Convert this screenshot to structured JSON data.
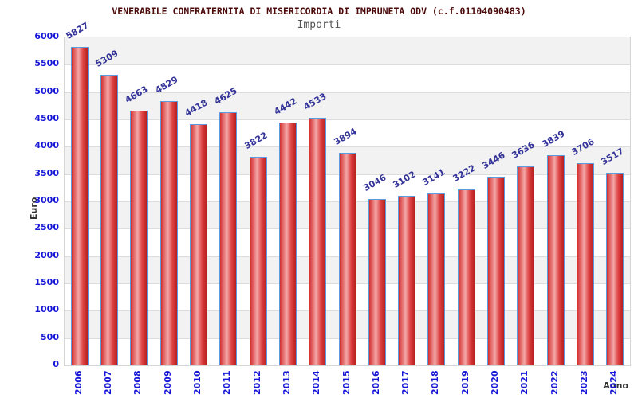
{
  "chart_data": {
    "type": "bar",
    "title": "VENERABILE CONFRATERNITA DI MISERICORDIA DI IMPRUNETA ODV (c.f.01104090483)",
    "subtitle": "Importi",
    "xlabel": "Anno",
    "ylabel": "Euro",
    "categories": [
      "2006",
      "2007",
      "2008",
      "2009",
      "2010",
      "2011",
      "2012",
      "2013",
      "2014",
      "2015",
      "2016",
      "2017",
      "2018",
      "2019",
      "2020",
      "2021",
      "2022",
      "2023",
      "2024"
    ],
    "values": [
      5827,
      5309,
      4663,
      4829,
      4418,
      4625,
      3822,
      4442,
      4533,
      3894,
      3046,
      3102,
      3141,
      3222,
      3446,
      3636,
      3839,
      3706,
      3517
    ],
    "ylim": [
      0,
      6000
    ],
    "ytick_step": 500,
    "grid": "horizontal",
    "legend": "none",
    "colors": {
      "title_text": "#4a0a0a",
      "subtitle_text": "#555555",
      "axis_tick_text": "#1616d6",
      "bar_value_text": "#333399",
      "axis_title_text": "#333333",
      "band_alt": "#f2f2f2",
      "band_main": "#ffffff",
      "gridline": "#dcdcdc",
      "plot_border": "#d6d6d6",
      "bar_border": "#5b9be0",
      "bar_edge_left": "#d42f2f",
      "bar_mid_light": "#f4a8a8",
      "bar_body": "#dd4040",
      "bar_edge_right": "#b81f1f"
    }
  }
}
